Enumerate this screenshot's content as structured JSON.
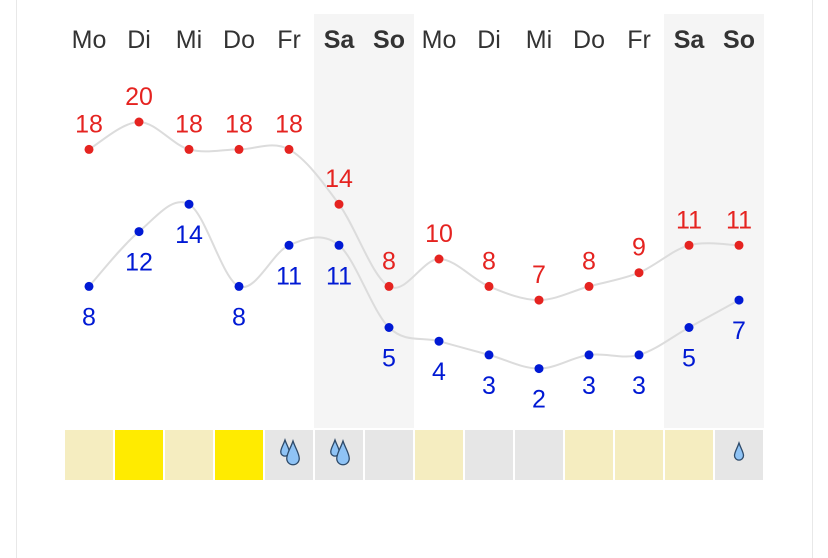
{
  "chart_data": {
    "type": "line",
    "categories": [
      "Mo",
      "Di",
      "Mi",
      "Do",
      "Fr",
      "Sa",
      "So",
      "Mo",
      "Di",
      "Mi",
      "Do",
      "Fr",
      "Sa",
      "So"
    ],
    "weekend": [
      false,
      false,
      false,
      false,
      false,
      true,
      true,
      false,
      false,
      false,
      false,
      false,
      true,
      true
    ],
    "series": [
      {
        "values": [
          18,
          20,
          18,
          18,
          18,
          14,
          8,
          10,
          8,
          7,
          8,
          9,
          11,
          11
        ],
        "color": "#e52320"
      },
      {
        "values": [
          8,
          12,
          14,
          8,
          11,
          11,
          5,
          4,
          3,
          2,
          3,
          3,
          5,
          7
        ],
        "color": "#0019d4"
      }
    ],
    "weather": [
      "partly-sunny",
      "sunny",
      "partly-sunny",
      "sunny",
      "heavy-rain",
      "heavy-rain",
      "cloudy",
      "partly-sunny",
      "cloudy",
      "cloudy",
      "partly-sunny",
      "partly-sunny",
      "partly-sunny",
      "light-rain"
    ],
    "weather_colors": {
      "sunny": "#ffeb00",
      "partly-sunny": "#f5edc0",
      "cloudy": "#e6e6e6",
      "heavy-rain": "#e6e6e6",
      "light-rain": "#e6e6e6"
    },
    "line_color": "#dcdcdc",
    "weekend_shade": "#f5f5f5",
    "day_label_color": "#333333"
  }
}
